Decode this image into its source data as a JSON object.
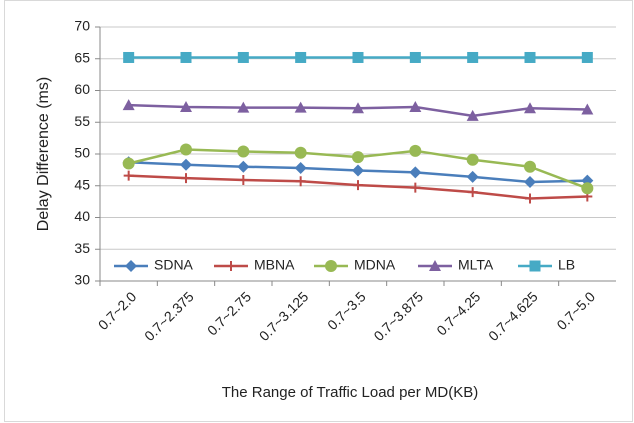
{
  "chart_data": {
    "type": "line",
    "y_label": "Delay Difference (ms)",
    "x_label": "The Range of Traffic Load per MD(KB)",
    "categories": [
      "0.7~2.0",
      "0.7~2.375",
      "0.7~2.75",
      "0.7~3.125",
      "0.7~3.5",
      "0.7~3.875",
      "0.7~4.25",
      "0.7~4.625",
      "0.7~5.0"
    ],
    "series": [
      {
        "name": "SDNA",
        "color": "#4a7ebb",
        "marker": "diamond",
        "values": [
          48.7,
          48.3,
          48.0,
          47.8,
          47.4,
          47.1,
          46.4,
          45.6,
          45.8
        ]
      },
      {
        "name": "MBNA",
        "color": "#be4b48",
        "marker": "plus",
        "values": [
          46.6,
          46.2,
          45.9,
          45.7,
          45.1,
          44.7,
          44.0,
          43.0,
          43.3
        ]
      },
      {
        "name": "MDNA",
        "color": "#98b954",
        "marker": "circle",
        "values": [
          48.5,
          50.7,
          50.4,
          50.2,
          49.5,
          50.5,
          49.1,
          48.0,
          44.6
        ]
      },
      {
        "name": "MLTA",
        "color": "#7d60a0",
        "marker": "triangle",
        "values": [
          57.7,
          57.4,
          57.3,
          57.3,
          57.2,
          57.4,
          56.0,
          57.2,
          57.0
        ]
      },
      {
        "name": "LB",
        "color": "#46aac5",
        "marker": "square",
        "values": [
          65.2,
          65.2,
          65.2,
          65.2,
          65.2,
          65.2,
          65.2,
          65.2,
          65.2
        ]
      }
    ],
    "ylim": [
      30,
      70
    ],
    "yticks": [
      30,
      35,
      40,
      45,
      50,
      55,
      60,
      65,
      70
    ],
    "grid": true,
    "legend": "bottom"
  }
}
